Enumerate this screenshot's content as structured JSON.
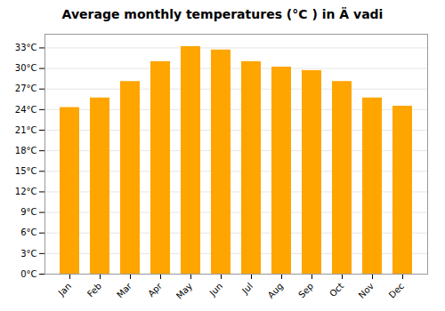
{
  "chart_data": {
    "type": "bar",
    "title": "Average monthly temperatures (°C ) in Ä vadi",
    "categories": [
      "Jan",
      "Feb",
      "Mar",
      "Apr",
      "May",
      "Jun",
      "Jul",
      "Aug",
      "Sep",
      "Oct",
      "Nov",
      "Dec"
    ],
    "values": [
      24.3,
      25.7,
      28.1,
      31.0,
      33.2,
      32.7,
      31.0,
      30.2,
      29.7,
      28.1,
      25.7,
      24.5
    ],
    "color": "#FFA500",
    "ylim": [
      0,
      35
    ],
    "yticks": [
      {
        "value": 0,
        "label": "0°C"
      },
      {
        "value": 3,
        "label": "3°C"
      },
      {
        "value": 6,
        "label": "6°C"
      },
      {
        "value": 9,
        "label": "9°C"
      },
      {
        "value": 12,
        "label": "12°C"
      },
      {
        "value": 15,
        "label": "15°C"
      },
      {
        "value": 18,
        "label": "18°C"
      },
      {
        "value": 21,
        "label": "21°C"
      },
      {
        "value": 24,
        "label": "24°C"
      },
      {
        "value": 27,
        "label": "27°C"
      },
      {
        "value": 30,
        "label": "30°C"
      },
      {
        "value": 33,
        "label": "33°C"
      }
    ],
    "grid": true
  }
}
